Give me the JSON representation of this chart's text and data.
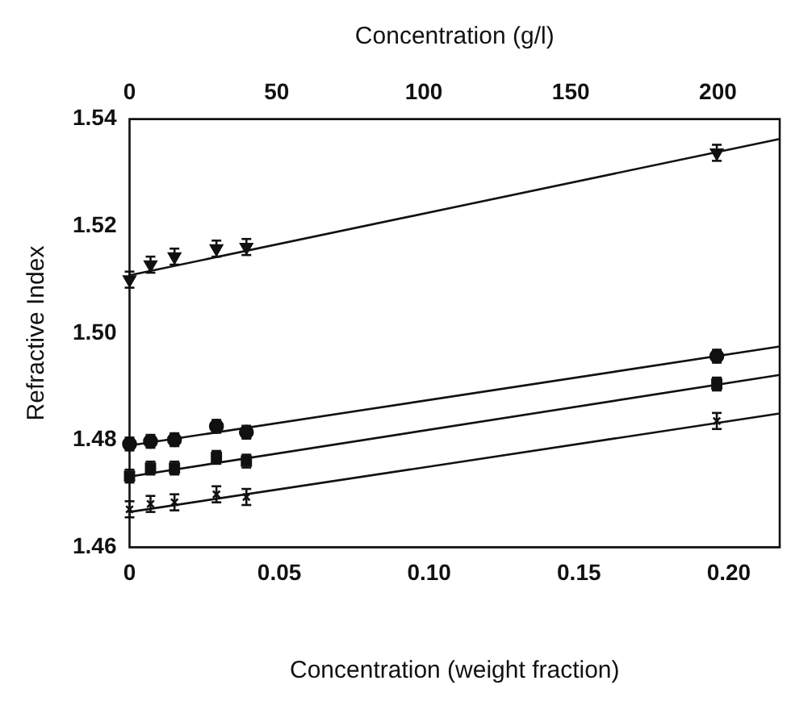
{
  "chart_data": {
    "type": "scatter",
    "xlabel": "Concentration (weight fraction)",
    "x2label": "Concentration (g/l)",
    "ylabel": "Refractive Index",
    "xlim": [
      0,
      0.217
    ],
    "xticks": [
      {
        "value": 0,
        "label": "0"
      },
      0.05,
      {
        "value": 0.1,
        "label": "0.10"
      },
      0.15,
      {
        "value": 0.2,
        "label": "0.20"
      }
    ],
    "x2lim": [
      0,
      221
    ],
    "x2ticks": [
      0,
      50,
      100,
      150,
      200
    ],
    "ylim": [
      1.46,
      1.54
    ],
    "yticks": [
      1.46,
      1.48,
      {
        "value": 1.5,
        "label": "1.50"
      },
      1.52,
      1.54
    ],
    "grid": false,
    "legend": false,
    "series": [
      {
        "color": "#111111",
        "marker": "triangle",
        "x": [
          0,
          0.007,
          0.015,
          0.029,
          0.039,
          0.196
        ],
        "values": [
          1.51,
          1.5128,
          1.5143,
          1.5158,
          1.5161,
          1.5337
        ],
        "errors": [
          0.0015,
          0.0015,
          0.0015,
          0.0015,
          0.0015,
          0.0015
        ]
      },
      {
        "color": "#111111",
        "marker": "circle",
        "x": [
          0,
          0.007,
          0.015,
          0.029,
          0.039,
          0.196
        ],
        "values": [
          1.4793,
          1.4798,
          1.4801,
          1.4826,
          1.4815,
          1.4957
        ],
        "errors": [
          0.0012,
          0.0012,
          0.0012,
          0.0012,
          0.0012,
          0.0012
        ]
      },
      {
        "color": "#111111",
        "marker": "square",
        "x": [
          0,
          0.007,
          0.015,
          0.029,
          0.039,
          0.196
        ],
        "values": [
          1.4733,
          1.4748,
          1.4748,
          1.4768,
          1.4761,
          1.4905
        ],
        "errors": [
          0.0012,
          0.0012,
          0.0012,
          0.0012,
          0.0012,
          0.0012
        ]
      },
      {
        "color": "#111111",
        "marker": "cross",
        "x": [
          0,
          0.007,
          0.015,
          0.029,
          0.039,
          0.196
        ],
        "values": [
          1.4671,
          1.4681,
          1.4684,
          1.4699,
          1.4694,
          1.4836
        ],
        "errors": [
          0.0015,
          0.0015,
          0.0015,
          0.0015,
          0.0015,
          0.0015
        ]
      },
      {
        "type": "line",
        "color": "#111111",
        "x": [
          0,
          0.217
        ],
        "values": [
          1.5108,
          1.5363
        ]
      },
      {
        "type": "line",
        "color": "#111111",
        "x": [
          0,
          0.217
        ],
        "values": [
          1.479,
          1.4975
        ]
      },
      {
        "type": "line",
        "color": "#111111",
        "x": [
          0,
          0.217
        ],
        "values": [
          1.4732,
          1.4922
        ]
      },
      {
        "type": "line",
        "color": "#111111",
        "x": [
          0,
          0.217
        ],
        "values": [
          1.4666,
          1.485
        ]
      }
    ]
  }
}
